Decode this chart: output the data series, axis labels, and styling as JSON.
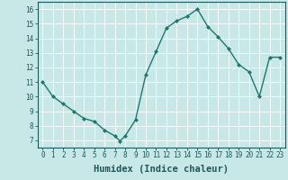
{
  "x": [
    0,
    1,
    2,
    3,
    4,
    5,
    6,
    7,
    7.5,
    8,
    9,
    10,
    11,
    12,
    13,
    14,
    15,
    16,
    17,
    18,
    19,
    20,
    21,
    22,
    23
  ],
  "y": [
    11,
    10,
    9.5,
    9.0,
    8.5,
    8.3,
    7.7,
    7.3,
    6.95,
    7.3,
    8.4,
    11.5,
    13.1,
    14.7,
    15.2,
    15.5,
    16.0,
    14.8,
    14.1,
    13.3,
    12.2,
    11.7,
    10.0,
    12.7,
    12.7
  ],
  "line_color": "#1a7a6e",
  "marker_color": "#1a7a6e",
  "bg_color": "#c8e8e8",
  "grid_color": "#b0d8d8",
  "xlabel": "Humidex (Indice chaleur)",
  "xlim": [
    -0.5,
    23.5
  ],
  "ylim": [
    6.5,
    16.5
  ],
  "yticks": [
    7,
    8,
    9,
    10,
    11,
    12,
    13,
    14,
    15,
    16
  ],
  "xticks": [
    0,
    1,
    2,
    3,
    4,
    5,
    6,
    7,
    8,
    9,
    10,
    11,
    12,
    13,
    14,
    15,
    16,
    17,
    18,
    19,
    20,
    21,
    22,
    23
  ],
  "font_color": "#1a5a5a",
  "tick_fontsize": 5.5,
  "label_fontsize": 7.5,
  "grid_white": "#ffffff",
  "grid_pink": "#e8c8c8"
}
